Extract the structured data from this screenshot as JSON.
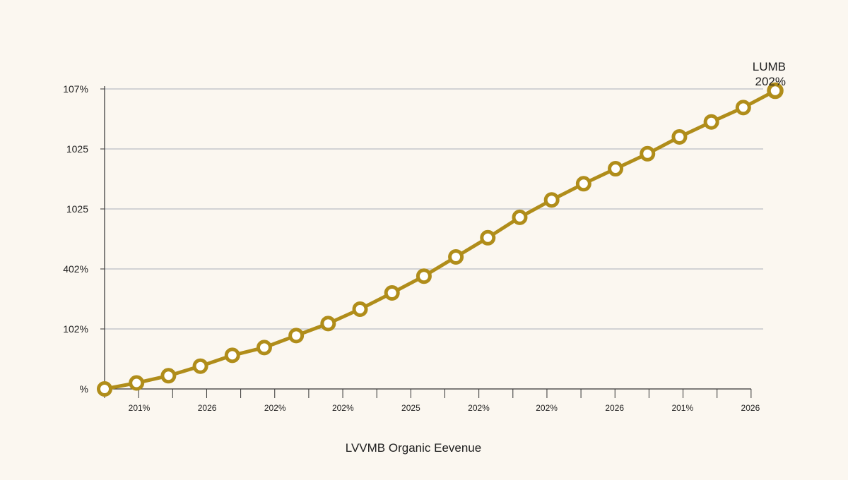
{
  "chart_data": {
    "type": "line",
    "title": "",
    "xlabel": "LVVMB Organic Eevenue",
    "ylabel": "",
    "y_tick_labels": [
      "%",
      "102%",
      "402%",
      "1025",
      "1025",
      "107%"
    ],
    "x_tick_labels": [
      "201%",
      "2026",
      "202%",
      "202%",
      "2025",
      "202%",
      "202%",
      "2026",
      "201%",
      "2026"
    ],
    "ylim": [
      0,
      5
    ],
    "grid": true,
    "series": [
      {
        "name": "",
        "color": "#b08d1a",
        "values": [
          0.0,
          0.1,
          0.22,
          0.38,
          0.56,
          0.69,
          0.89,
          1.09,
          1.33,
          1.6,
          1.88,
          2.2,
          2.52,
          2.86,
          3.15,
          3.42,
          3.67,
          3.92,
          4.2,
          4.45,
          4.69,
          4.97
        ]
      }
    ],
    "end_label": {
      "series": "LUMB",
      "value": "202%"
    }
  }
}
